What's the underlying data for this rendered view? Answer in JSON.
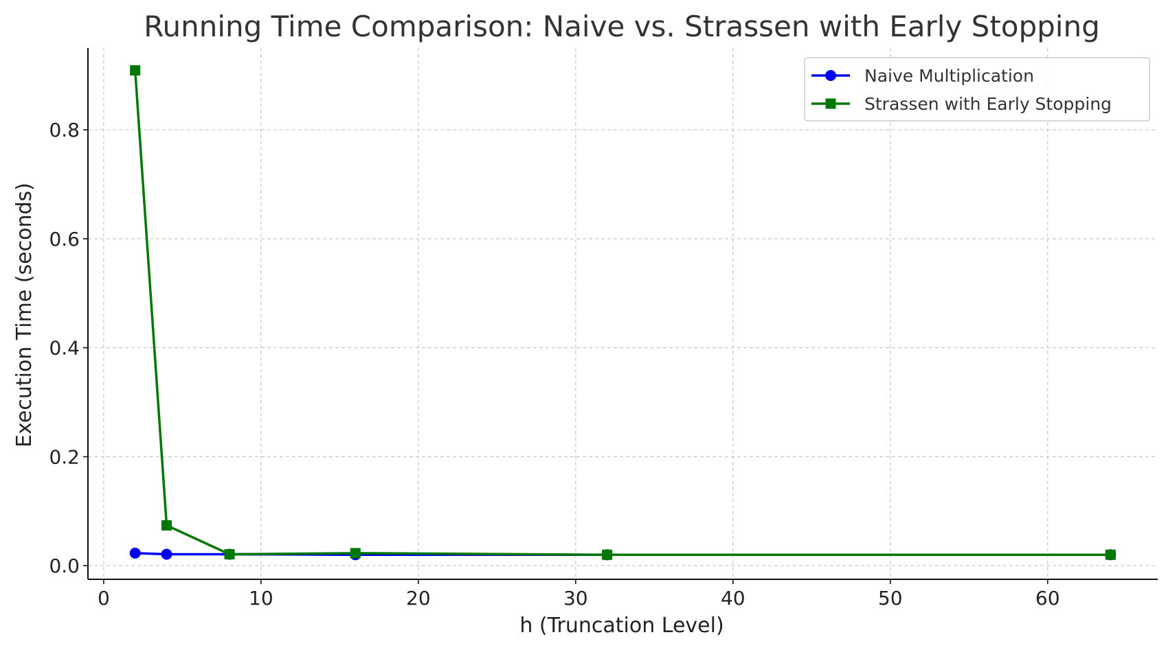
{
  "chart_data": {
    "type": "line",
    "title": "Running Time Comparison: Naive vs. Strassen with Early Stopping",
    "xlabel": "h (Truncation Level)",
    "ylabel": "Execution Time (seconds)",
    "xlim": [
      -1,
      67
    ],
    "ylim": [
      -0.025,
      0.95
    ],
    "x_ticks": [
      0,
      10,
      20,
      30,
      40,
      50,
      60
    ],
    "x_tick_labels": [
      "0",
      "10",
      "20",
      "30",
      "40",
      "50",
      "60"
    ],
    "y_ticks": [
      0.0,
      0.2,
      0.4,
      0.6,
      0.8
    ],
    "y_tick_labels": [
      "0.0",
      "0.2",
      "0.4",
      "0.6",
      "0.8"
    ],
    "grid": true,
    "legend_position": "top-right",
    "series": [
      {
        "name": "Naive Multiplication",
        "color": "#0000ee",
        "marker": "circle",
        "x": [
          2,
          4,
          8,
          16,
          32,
          64
        ],
        "y": [
          0.023,
          0.021,
          0.021,
          0.02,
          0.02,
          0.02
        ]
      },
      {
        "name": "Strassen with Early Stopping",
        "color": "#007700",
        "marker": "square",
        "x": [
          2,
          4,
          8,
          16,
          32,
          64
        ],
        "y": [
          0.909,
          0.074,
          0.021,
          0.023,
          0.02,
          0.02
        ]
      }
    ]
  }
}
